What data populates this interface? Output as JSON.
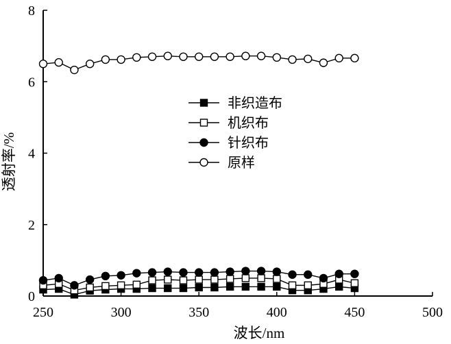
{
  "chart_data": {
    "type": "line",
    "xlabel": "波长/nm",
    "ylabel": "透射率/%",
    "xlim": [
      250,
      500
    ],
    "ylim": [
      0,
      8
    ],
    "xticks": [
      250,
      300,
      350,
      400,
      450,
      500
    ],
    "yticks": [
      0,
      2,
      4,
      6,
      8
    ],
    "grid": false,
    "legend_position": "center",
    "x": [
      250,
      260,
      270,
      280,
      290,
      300,
      310,
      320,
      330,
      340,
      350,
      360,
      370,
      380,
      390,
      400,
      410,
      420,
      430,
      440,
      450
    ],
    "series": [
      {
        "name": "非织造布",
        "marker": "filled-square",
        "values": [
          0.18,
          0.2,
          0.04,
          0.15,
          0.18,
          0.2,
          0.2,
          0.22,
          0.22,
          0.22,
          0.24,
          0.24,
          0.26,
          0.26,
          0.26,
          0.26,
          0.16,
          0.16,
          0.2,
          0.26,
          0.22
        ]
      },
      {
        "name": "机织布",
        "marker": "open-square",
        "values": [
          0.3,
          0.34,
          0.16,
          0.24,
          0.28,
          0.3,
          0.32,
          0.44,
          0.46,
          0.44,
          0.46,
          0.46,
          0.48,
          0.5,
          0.5,
          0.48,
          0.3,
          0.3,
          0.34,
          0.46,
          0.36
        ]
      },
      {
        "name": "针织布",
        "marker": "filled-circle",
        "values": [
          0.44,
          0.5,
          0.3,
          0.46,
          0.56,
          0.58,
          0.64,
          0.66,
          0.68,
          0.66,
          0.66,
          0.66,
          0.68,
          0.7,
          0.7,
          0.68,
          0.6,
          0.6,
          0.5,
          0.62,
          0.62
        ]
      },
      {
        "name": "原样",
        "marker": "open-circle",
        "values": [
          6.5,
          6.54,
          6.33,
          6.5,
          6.62,
          6.62,
          6.68,
          6.7,
          6.72,
          6.7,
          6.7,
          6.7,
          6.7,
          6.72,
          6.72,
          6.68,
          6.62,
          6.64,
          6.53,
          6.66,
          6.66
        ]
      }
    ]
  }
}
